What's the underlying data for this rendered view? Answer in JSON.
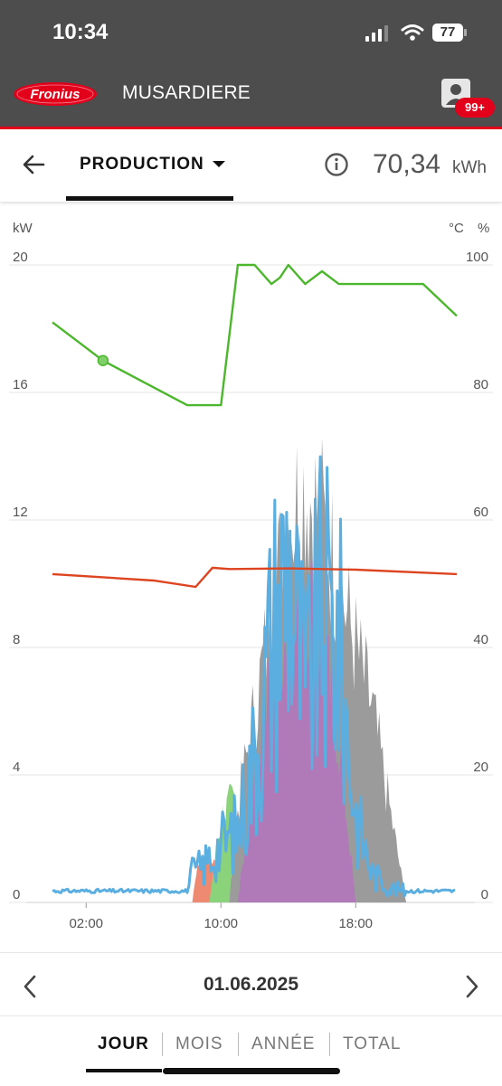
{
  "status": {
    "time": "10:34",
    "battery": "77"
  },
  "header": {
    "logo_text": "Fronius",
    "site_name": "MUSARDIERE",
    "notification_count": "99+"
  },
  "toolbar": {
    "view_label": "PRODUCTION",
    "total_value": "70,34",
    "total_unit": "kWh"
  },
  "chart_data": {
    "type": "area",
    "y_left_label": "kW",
    "y_right_label_1": "°C",
    "y_right_label_2": "%",
    "y_left_ticks": [
      "20",
      "16",
      "12",
      "8",
      "4",
      "0"
    ],
    "y_right_ticks": [
      "100",
      "80",
      "60",
      "40",
      "20",
      "0"
    ],
    "x_ticks": [
      "02:00",
      "10:00",
      "18:00"
    ],
    "ylim_left": [
      0,
      20
    ],
    "ylim_right": [
      0,
      100
    ],
    "grid": true,
    "colors": {
      "soc": "#4cb72c",
      "temperature": "#dd4420",
      "blue": "#5aaee0",
      "purple": "#b07ab8",
      "grey": "#9b9b9b",
      "green": "#8ad37b",
      "salmon": "#ef8a72",
      "yellow": "#f6d247"
    },
    "series": [
      {
        "key": "soc",
        "axis": "right",
        "x": [
          0,
          3,
          8,
          10,
          10.5,
          11,
          12,
          13,
          13.5,
          14,
          15,
          16,
          17,
          18,
          20,
          22,
          24
        ],
        "y": [
          91,
          85,
          78,
          78,
          89,
          100,
          100,
          97,
          98,
          100,
          97,
          99,
          97,
          97,
          97,
          97,
          92
        ]
      },
      {
        "key": "temperature",
        "axis": "right",
        "x": [
          0,
          6,
          8.5,
          9.5,
          10.5,
          14,
          18,
          24
        ],
        "y": [
          51.5,
          50.5,
          49.5,
          52.5,
          52.3,
          52.4,
          52.2,
          51.5
        ]
      },
      {
        "key": "blue",
        "axis": "left",
        "x": [
          0,
          8,
          8.3,
          9,
          10,
          11,
          12,
          13,
          14,
          15,
          16,
          17,
          18,
          19,
          20,
          21,
          24
        ],
        "y": [
          0.4,
          0.4,
          1,
          1.3,
          2,
          2.5,
          5,
          9,
          12,
          7,
          10,
          9,
          3,
          1,
          0.5,
          0.4,
          0.4
        ]
      },
      {
        "key": "grey",
        "axis": "left",
        "x": [
          8,
          10,
          11,
          12,
          14,
          15,
          16,
          17,
          18,
          19,
          20,
          21
        ],
        "y": [
          0,
          1,
          3,
          6,
          10,
          12,
          14,
          11,
          9,
          8,
          3,
          0
        ]
      },
      {
        "key": "purple",
        "axis": "left",
        "x": [
          10,
          11,
          12,
          13,
          14,
          15,
          16,
          17,
          18
        ],
        "y": [
          0,
          2,
          6,
          8,
          10,
          8,
          9,
          6,
          0
        ]
      }
    ]
  },
  "date_nav": {
    "date": "01.06.2025"
  },
  "periods": [
    {
      "label": "JOUR",
      "active": true
    },
    {
      "label": "MOIS",
      "active": false
    },
    {
      "label": "ANNÉE",
      "active": false
    },
    {
      "label": "TOTAL",
      "active": false
    }
  ]
}
